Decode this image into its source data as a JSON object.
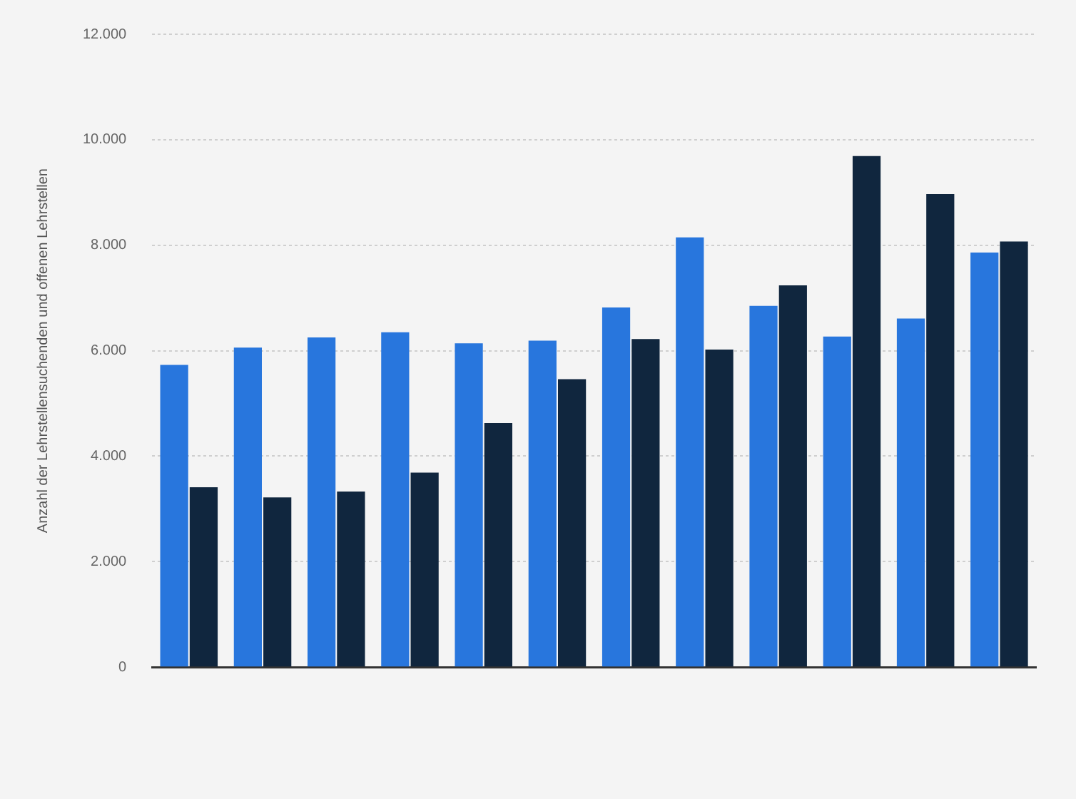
{
  "chart_data": {
    "type": "bar",
    "ylabel": "Anzahl der Lehrstellensuchenden und offenen Lehrstellen",
    "categories": [
      null,
      null,
      null,
      null,
      null,
      null,
      null,
      null,
      null,
      null,
      null,
      null
    ],
    "series": [
      {
        "color": "#2876dd",
        "values": [
          5730,
          6060,
          6250,
          6350,
          6140,
          6190,
          6820,
          8150,
          6850,
          6270,
          6610,
          7860
        ]
      },
      {
        "color": "#10263e",
        "values": [
          3410,
          3220,
          3330,
          3690,
          4630,
          5460,
          6220,
          6020,
          7240,
          9690,
          8970,
          8070
        ]
      }
    ],
    "ylim": [
      0,
      12000
    ],
    "yticks": [
      {
        "value": 0,
        "label": "0"
      },
      {
        "value": 2000,
        "label": "2.000"
      },
      {
        "value": 4000,
        "label": "4.000"
      },
      {
        "value": 6000,
        "label": "6.000"
      },
      {
        "value": 8000,
        "label": "8.000"
      },
      {
        "value": 10000,
        "label": "10.000"
      },
      {
        "value": 12000,
        "label": "12.000"
      }
    ],
    "grid": "y",
    "legend": false
  }
}
